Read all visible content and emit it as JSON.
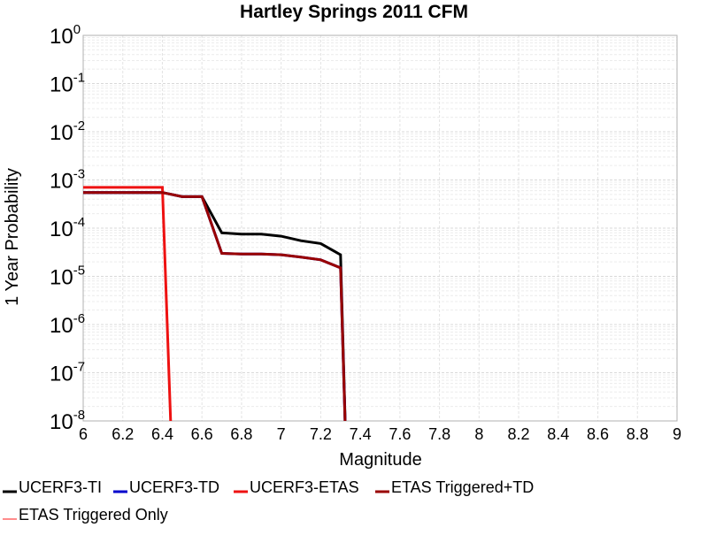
{
  "chart_data": {
    "type": "line",
    "title": "Hartley Springs 2011 CFM",
    "xlabel": "Magnitude",
    "ylabel": "1 Year Probability",
    "xlim": [
      6,
      9
    ],
    "ylim": [
      1e-08,
      1
    ],
    "yscale": "log",
    "grid": true,
    "legend_position": "bottom",
    "x_ticks": [
      "6",
      "6.2",
      "6.4",
      "6.6",
      "6.8",
      "7",
      "7.2",
      "7.4",
      "7.6",
      "7.8",
      "8",
      "8.2",
      "8.4",
      "8.6",
      "8.8",
      "9"
    ],
    "y_ticks": [
      {
        "base": "10",
        "exp": "0",
        "value": 1
      },
      {
        "base": "10",
        "exp": "-1",
        "value": 0.1
      },
      {
        "base": "10",
        "exp": "-2",
        "value": 0.01
      },
      {
        "base": "10",
        "exp": "-3",
        "value": 0.001
      },
      {
        "base": "10",
        "exp": "-4",
        "value": 0.0001
      },
      {
        "base": "10",
        "exp": "-5",
        "value": 1e-05
      },
      {
        "base": "10",
        "exp": "-6",
        "value": 1e-06
      },
      {
        "base": "10",
        "exp": "-7",
        "value": 1e-07
      },
      {
        "base": "10",
        "exp": "-8",
        "value": 1e-08
      }
    ],
    "series": [
      {
        "name": "UCERF3-TI",
        "color": "#000000",
        "points": [
          [
            6.0,
            0.00055
          ],
          [
            6.1,
            0.00055
          ],
          [
            6.2,
            0.00055
          ],
          [
            6.3,
            0.00055
          ],
          [
            6.4,
            0.00055
          ],
          [
            6.5,
            0.00045
          ],
          [
            6.6,
            0.00045
          ],
          [
            6.7,
            8e-05
          ],
          [
            6.8,
            7.5e-05
          ],
          [
            6.9,
            7.5e-05
          ],
          [
            7.0,
            6.8e-05
          ],
          [
            7.1,
            5.5e-05
          ],
          [
            7.2,
            4.8e-05
          ],
          [
            7.3,
            2.8e-05
          ],
          [
            7.33,
            1e-09
          ]
        ]
      },
      {
        "name": "UCERF3-TD",
        "color": "#0000cc",
        "points": [
          [
            6.0,
            0.00055
          ],
          [
            6.1,
            0.00055
          ],
          [
            6.2,
            0.00055
          ],
          [
            6.3,
            0.00055
          ],
          [
            6.4,
            0.00055
          ],
          [
            6.5,
            0.00045
          ],
          [
            6.6,
            0.00045
          ],
          [
            6.7,
            3e-05
          ],
          [
            6.8,
            2.9e-05
          ],
          [
            6.9,
            2.9e-05
          ],
          [
            7.0,
            2.8e-05
          ],
          [
            7.1,
            2.5e-05
          ],
          [
            7.2,
            2.2e-05
          ],
          [
            7.3,
            1.5e-05
          ],
          [
            7.33,
            1e-09
          ]
        ]
      },
      {
        "name": "UCERF3-ETAS",
        "color": "#ee1111",
        "points": [
          [
            6.0,
            0.0007
          ],
          [
            6.1,
            0.0007
          ],
          [
            6.2,
            0.0007
          ],
          [
            6.3,
            0.0007
          ],
          [
            6.4,
            0.0007
          ],
          [
            6.45,
            1e-09
          ]
        ]
      },
      {
        "name": "ETAS Triggered+TD",
        "color": "#990000",
        "points": [
          [
            6.0,
            0.00055
          ],
          [
            6.1,
            0.00055
          ],
          [
            6.2,
            0.00055
          ],
          [
            6.3,
            0.00055
          ],
          [
            6.4,
            0.00055
          ],
          [
            6.5,
            0.00045
          ],
          [
            6.6,
            0.00045
          ],
          [
            6.7,
            3e-05
          ],
          [
            6.8,
            2.9e-05
          ],
          [
            6.9,
            2.9e-05
          ],
          [
            7.0,
            2.8e-05
          ],
          [
            7.1,
            2.5e-05
          ],
          [
            7.2,
            2.2e-05
          ],
          [
            7.3,
            1.5e-05
          ],
          [
            7.33,
            1e-09
          ]
        ]
      },
      {
        "name": "ETAS Triggered Only",
        "color": "#ff8c8c",
        "points": []
      }
    ]
  }
}
